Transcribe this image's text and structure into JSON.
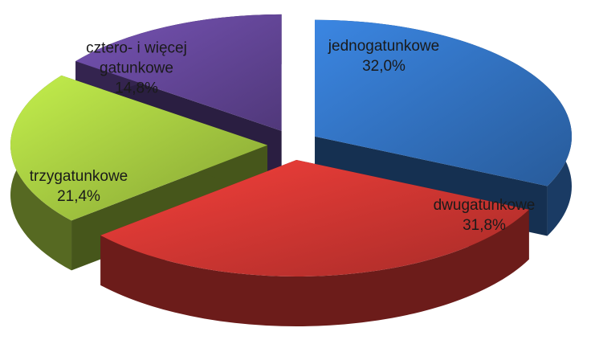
{
  "chart_data": {
    "type": "pie3d",
    "categories": [
      "jednogatunkowe",
      "dwugatunkowe",
      "trzygatunkowe",
      "cztero- i więcej gatunkowe"
    ],
    "values": [
      32.0,
      31.8,
      21.4,
      14.8
    ],
    "value_labels": [
      "32,0%",
      "31,8%",
      "21,4%",
      "14,8%"
    ],
    "colors": [
      "#2f6bb5",
      "#c4332f",
      "#9cbf3d",
      "#5e4290"
    ]
  }
}
